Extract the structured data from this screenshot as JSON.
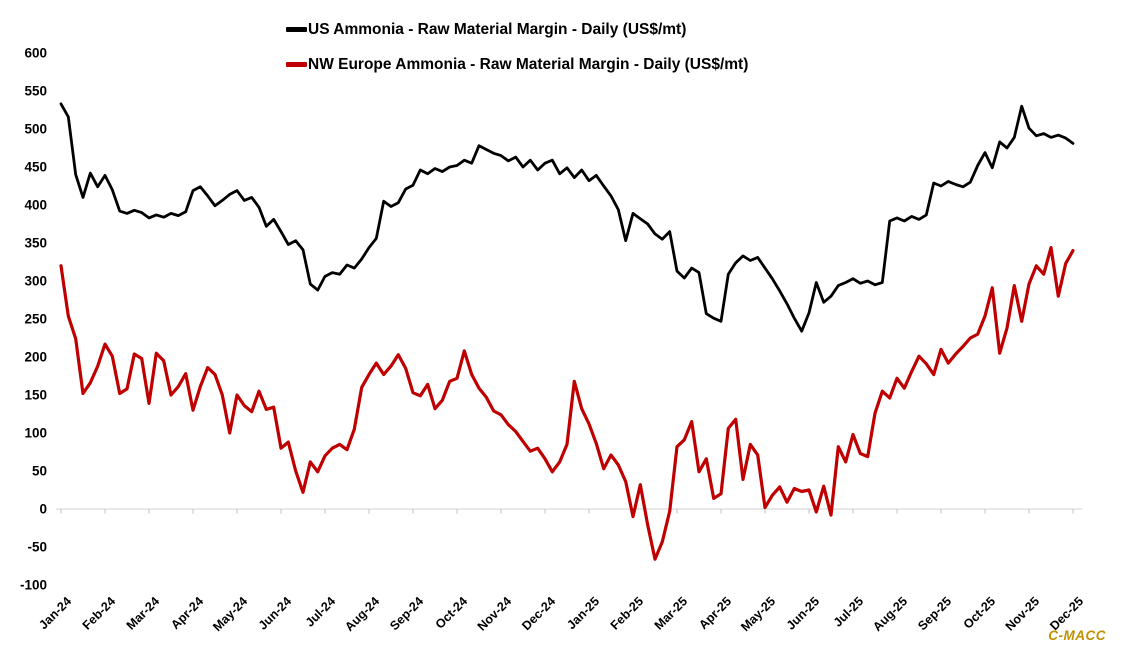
{
  "watermark": {
    "text": "C-MACC",
    "color": "#BF9000"
  },
  "axis_colors": {
    "axis_line": "#d9d9d9",
    "tick": "#c9c9c9",
    "label": "#000000"
  },
  "chart_data": {
    "type": "line",
    "title": "",
    "legend_position": "top-center",
    "grid": "none",
    "ylim": [
      -100,
      600
    ],
    "y_ticks": [
      600,
      550,
      500,
      450,
      400,
      350,
      300,
      250,
      200,
      150,
      100,
      50,
      0,
      -50,
      -100
    ],
    "x_labels": [
      "Jan-24",
      "Feb-24",
      "Mar-24",
      "Apr-24",
      "May-24",
      "Jun-24",
      "Jul-24",
      "Aug-24",
      "Sep-24",
      "Oct-24",
      "Nov-24",
      "Dec-24",
      "Jan-25",
      "Feb-25",
      "Mar-25",
      "Apr-25",
      "May-25",
      "Jun-25",
      "Jul-25",
      "Aug-25",
      "Sep-25",
      "Oct-25",
      "Nov-25",
      "Dec-25"
    ],
    "x_note": "daily series sampled ~6 points per month, Jan-24 through Dec-25",
    "series": [
      {
        "name": "US Ammonia - Raw Material Margin - Daily (US$/mt)",
        "color": "#000000",
        "values": [
          533,
          516,
          440,
          410,
          442,
          424,
          439,
          420,
          392,
          389,
          393,
          390,
          383,
          387,
          384,
          389,
          386,
          391,
          419,
          424,
          412,
          399,
          406,
          414,
          419,
          406,
          410,
          397,
          372,
          381,
          365,
          348,
          353,
          341,
          296,
          288,
          306,
          311,
          309,
          321,
          317,
          329,
          344,
          356,
          405,
          398,
          403,
          421,
          426,
          446,
          441,
          448,
          444,
          450,
          452,
          459,
          455,
          478,
          473,
          468,
          465,
          458,
          463,
          450,
          459,
          446,
          455,
          459,
          441,
          449,
          436,
          446,
          432,
          439,
          425,
          412,
          394,
          353,
          389,
          382,
          375,
          362,
          355,
          365,
          313,
          304,
          317,
          311,
          257,
          251,
          247,
          309,
          324,
          333,
          327,
          331,
          317,
          303,
          287,
          270,
          251,
          234,
          258,
          298,
          272,
          280,
          294,
          298,
          303,
          297,
          300,
          295,
          298,
          379,
          383,
          379,
          385,
          381,
          387,
          429,
          425,
          431,
          427,
          424,
          430,
          452,
          469,
          449,
          483,
          475,
          489,
          530,
          501,
          491,
          494,
          489,
          492,
          488,
          481
        ]
      },
      {
        "name": "NW Europe Ammonia - Raw Material Margin - Daily (US$/mt)",
        "color": "#C00000",
        "values": [
          320,
          254,
          224,
          152,
          166,
          188,
          217,
          201,
          152,
          158,
          204,
          198,
          139,
          205,
          195,
          150,
          161,
          178,
          130,
          161,
          186,
          177,
          150,
          100,
          150,
          136,
          128,
          155,
          131,
          134,
          80,
          88,
          50,
          22,
          62,
          49,
          70,
          80,
          85,
          78,
          105,
          160,
          177,
          192,
          177,
          188,
          203,
          185,
          153,
          149,
          164,
          132,
          143,
          168,
          172,
          208,
          177,
          159,
          147,
          129,
          124,
          111,
          102,
          89,
          76,
          80,
          66,
          49,
          62,
          85,
          168,
          132,
          112,
          86,
          53,
          71,
          58,
          36,
          -10,
          32,
          -21,
          -66,
          -43,
          -3,
          82,
          91,
          115,
          49,
          66,
          14,
          20,
          106,
          118,
          39,
          85,
          71,
          2,
          18,
          29,
          9,
          27,
          23,
          25,
          -4,
          30,
          -8,
          82,
          62,
          98,
          73,
          69,
          126,
          155,
          146,
          172,
          159,
          181,
          201,
          191,
          177,
          210,
          192,
          204,
          214,
          225,
          230,
          254,
          291,
          205,
          238,
          294,
          247,
          296,
          320,
          309,
          344,
          280,
          323,
          340
        ]
      }
    ]
  }
}
